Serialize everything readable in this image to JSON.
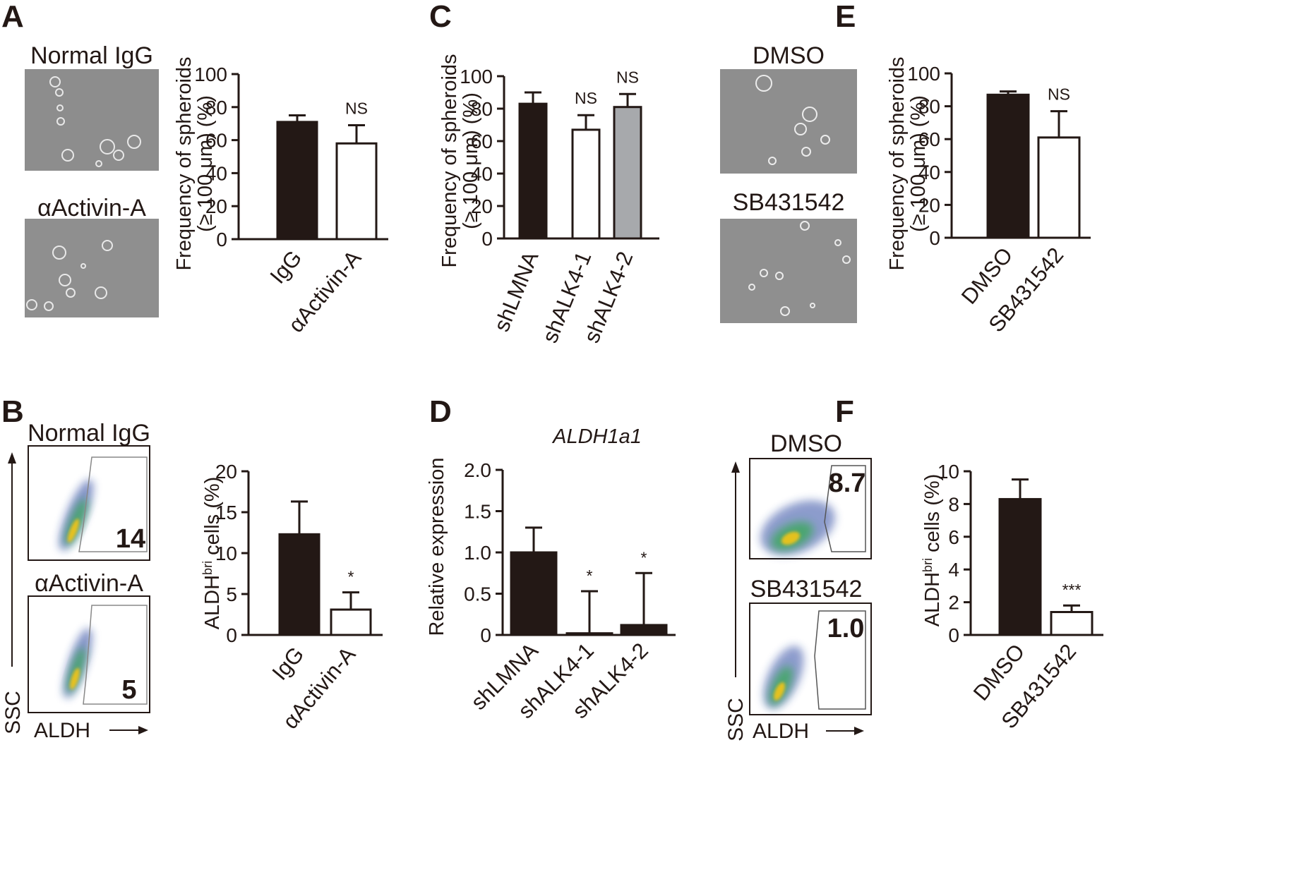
{
  "panels": {
    "A": {
      "label": "A",
      "image_titles": [
        "Normal IgG",
        "αActivin-A"
      ],
      "ylabel_line1": "Frequency of spheroids",
      "ylabel_line2": "(≥ 100 μm) (%)"
    },
    "B": {
      "label": "B",
      "flow_titles": [
        "Normal IgG",
        "αActivin-A"
      ],
      "gate_values": [
        "14",
        "5"
      ],
      "ylabel": "ALDH",
      "ylabel_sup": "bri",
      "ylabel_rest": " cells (%)",
      "flow_y_axis": "SSC",
      "flow_x_axis": "ALDH"
    },
    "C": {
      "label": "C",
      "ylabel_line1": "Frequency of spheroids",
      "ylabel_line2": "(≥ 100 μm) (%)"
    },
    "D": {
      "label": "D",
      "title": "ALDH1a1",
      "ylabel": "Relative expression"
    },
    "E": {
      "label": "E",
      "image_titles": [
        "DMSO",
        "SB431542"
      ],
      "ylabel_line1": "Frequency of spheroids",
      "ylabel_line2": "(≥ 100 μm) (%)"
    },
    "F": {
      "label": "F",
      "flow_titles": [
        "DMSO",
        "SB431542"
      ],
      "gate_values": [
        "8.7",
        "1.0"
      ],
      "ylabel": "ALDH",
      "ylabel_sup": "bri",
      "ylabel_rest": " cells (%)",
      "flow_y_axis": "SSC",
      "flow_x_axis": "ALDH"
    }
  },
  "colors": {
    "black_bar": "#231815",
    "white_bar": "#ffffff",
    "gray_bar": "#a7a9ac",
    "photo": "#8a8a8a",
    "flow_low": "#1f3b9a",
    "flow_mid": "#34a853",
    "flow_high": "#f5c518"
  },
  "chart_data": [
    {
      "id": "A",
      "type": "bar",
      "categories": [
        "IgG",
        "αActivin-A"
      ],
      "values": [
        71,
        58
      ],
      "errors": [
        4,
        11
      ],
      "fills": [
        "black_bar",
        "white_bar"
      ],
      "annotations": [
        "",
        "NS"
      ],
      "yticks": [
        "0",
        "20",
        "40",
        "60",
        "80",
        "100"
      ],
      "ylim": [
        0,
        100
      ],
      "ylabel": "Frequency of spheroids (≥ 100 μm) (%)"
    },
    {
      "id": "B",
      "type": "bar",
      "categories": [
        "IgG",
        "αActivin-A"
      ],
      "values": [
        12.3,
        3.1
      ],
      "errors": [
        4.0,
        2.1
      ],
      "fills": [
        "black_bar",
        "white_bar"
      ],
      "annotations": [
        "",
        "*"
      ],
      "yticks": [
        "0",
        "5",
        "10",
        "15",
        "20"
      ],
      "ylim": [
        0,
        20
      ],
      "ylabel": "ALDHbri cells (%)"
    },
    {
      "id": "C",
      "type": "bar",
      "categories": [
        "shLMNA",
        "shALK4-1",
        "shALK4-2"
      ],
      "values": [
        83,
        67,
        81
      ],
      "errors": [
        7,
        9,
        8
      ],
      "fills": [
        "black_bar",
        "white_bar",
        "gray_bar"
      ],
      "annotations": [
        "",
        "NS",
        "NS"
      ],
      "yticks": [
        "0",
        "20",
        "40",
        "60",
        "80",
        "100"
      ],
      "ylim": [
        0,
        100
      ],
      "ylabel": "Frequency of spheroids (≥ 100 μm) (%)"
    },
    {
      "id": "D",
      "type": "bar",
      "title": "ALDH1a1",
      "categories": [
        "shLMNA",
        "shALK4-1",
        "shALK4-2"
      ],
      "values": [
        1.0,
        0.02,
        0.12
      ],
      "errors": [
        0.3,
        0.51,
        0.63
      ],
      "fills": [
        "black_bar",
        "black_bar",
        "black_bar"
      ],
      "annotations": [
        "",
        "*",
        "*"
      ],
      "yticks": [
        "0",
        "0.5",
        "1.0",
        "1.5",
        "2.0"
      ],
      "ylim": [
        0,
        2.0
      ],
      "ylabel": "Relative expression"
    },
    {
      "id": "E",
      "type": "bar",
      "categories": [
        "DMSO",
        "SB431542"
      ],
      "values": [
        87,
        61
      ],
      "errors": [
        2,
        16
      ],
      "fills": [
        "black_bar",
        "white_bar"
      ],
      "annotations": [
        "",
        "NS"
      ],
      "yticks": [
        "0",
        "20",
        "40",
        "60",
        "80",
        "100"
      ],
      "ylim": [
        0,
        100
      ],
      "ylabel": "Frequency of spheroids (≥ 100 μm) (%)"
    },
    {
      "id": "F",
      "type": "bar",
      "categories": [
        "DMSO",
        "SB431542"
      ],
      "values": [
        8.3,
        1.4
      ],
      "errors": [
        1.2,
        0.4
      ],
      "fills": [
        "black_bar",
        "white_bar"
      ],
      "annotations": [
        "",
        "***"
      ],
      "yticks": [
        "0",
        "2",
        "4",
        "6",
        "8",
        "10"
      ],
      "ylim": [
        0,
        10
      ],
      "ylabel": "ALDHbri cells (%)"
    }
  ]
}
